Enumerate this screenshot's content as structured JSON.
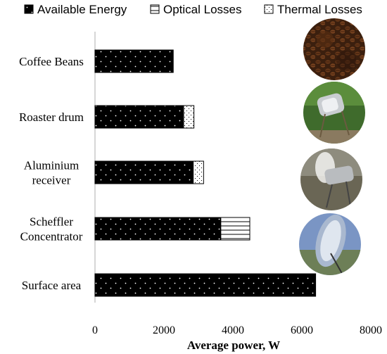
{
  "chart_data": {
    "type": "bar",
    "orientation": "horizontal",
    "stacked": true,
    "categories": [
      "Coffee Beans",
      "Roaster drum",
      "Aluminium receiver",
      "Scheffler Concentrator",
      "Surface area"
    ],
    "category_lines": [
      [
        "Coffee Beans"
      ],
      [
        "Roaster drum"
      ],
      [
        "Aluminium",
        "receiver"
      ],
      [
        "Scheffler",
        "Concentrator"
      ],
      [
        "Surface area"
      ]
    ],
    "series": [
      {
        "name": "Available Energy",
        "values": [
          2270,
          2570,
          2850,
          3650,
          6400
        ]
      },
      {
        "name": "Optical Losses",
        "values": [
          0,
          0,
          0,
          840,
          0
        ]
      },
      {
        "name": "Thermal Losses",
        "values": [
          0,
          300,
          300,
          0,
          0
        ]
      }
    ],
    "xlabel": "Average power, W",
    "ylabel": "",
    "xlim": [
      0,
      8000
    ],
    "xticks": [
      0,
      2000,
      4000,
      6000,
      8000
    ],
    "grid": false,
    "legend_position": "top"
  },
  "photos": [
    "coffee-beans-photo",
    "roaster-drum-photo",
    "aluminium-receiver-photo",
    "scheffler-concentrator-photo"
  ]
}
